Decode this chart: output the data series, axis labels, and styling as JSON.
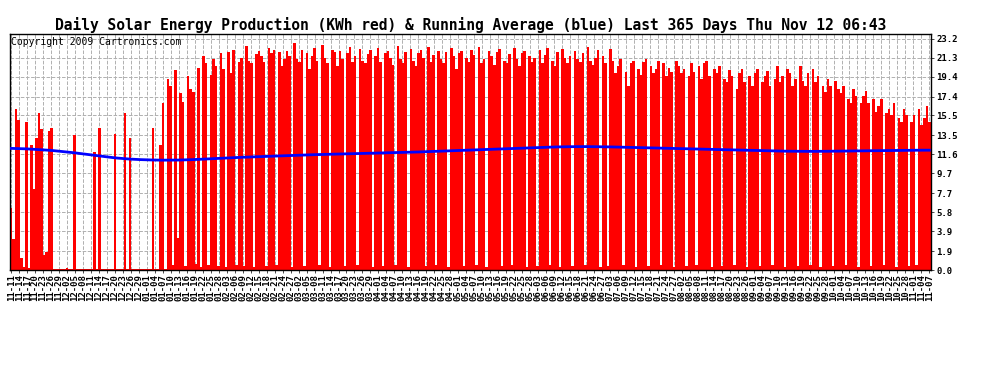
{
  "title": "Daily Solar Energy Production (KWh red) & Running Average (blue) Last 365 Days Thu Nov 12 06:43",
  "copyright_text": "Copyright 2009 Cartronics.com",
  "bar_color": "#ff0000",
  "avg_line_color": "#0000ff",
  "background_color": "#ffffff",
  "grid_color": "#b0b0b0",
  "yticks": [
    0.0,
    1.9,
    3.9,
    5.8,
    7.7,
    9.7,
    11.6,
    13.5,
    15.5,
    17.4,
    19.4,
    21.3,
    23.2
  ],
  "ylim": [
    0.0,
    23.7
  ],
  "xtick_labels": [
    "11-11",
    "11-14",
    "11-17",
    "11-20",
    "11-23",
    "11-26",
    "11-29",
    "12-02",
    "12-05",
    "12-08",
    "12-11",
    "12-14",
    "12-17",
    "12-20",
    "12-23",
    "12-26",
    "12-29",
    "01-01",
    "01-04",
    "01-07",
    "01-10",
    "01-13",
    "01-16",
    "01-19",
    "01-22",
    "01-25",
    "01-28",
    "02-03",
    "02-06",
    "02-09",
    "02-12",
    "02-15",
    "02-18",
    "02-21",
    "02-24",
    "02-27",
    "03-02",
    "03-05",
    "03-08",
    "03-11",
    "03-14",
    "03-17",
    "03-20",
    "03-23",
    "03-26",
    "03-29",
    "04-01",
    "04-04",
    "04-07",
    "04-10",
    "04-13",
    "04-16",
    "04-19",
    "04-22",
    "04-25",
    "04-28",
    "05-01",
    "05-04",
    "05-07",
    "05-10",
    "05-13",
    "05-16",
    "05-19",
    "05-22",
    "05-25",
    "05-28",
    "06-03",
    "06-06",
    "06-09",
    "06-12",
    "06-15",
    "06-18",
    "06-21",
    "06-24",
    "06-27",
    "07-03",
    "07-06",
    "07-09",
    "07-12",
    "07-15",
    "07-18",
    "07-21",
    "07-24",
    "07-27",
    "08-02",
    "08-05",
    "08-08",
    "08-11",
    "08-14",
    "08-17",
    "08-20",
    "08-23",
    "08-26",
    "09-01",
    "09-04",
    "09-07",
    "09-10",
    "09-13",
    "09-16",
    "09-19",
    "09-22",
    "09-25",
    "09-28",
    "10-01",
    "10-04",
    "10-07",
    "10-10",
    "10-13",
    "10-16",
    "10-19",
    "10-22",
    "10-25",
    "10-28",
    "11-01",
    "11-04",
    "11-07"
  ],
  "title_fontsize": 10.5,
  "tick_fontsize": 6.5,
  "copyright_fontsize": 7,
  "avg_line": [
    12.2,
    12.18,
    12.15,
    12.1,
    12.05,
    12.0,
    11.92,
    11.84,
    11.75,
    11.65,
    11.55,
    11.45,
    11.35,
    11.25,
    11.18,
    11.12,
    11.08,
    11.05,
    11.03,
    11.02,
    11.02,
    11.03,
    11.05,
    11.08,
    11.12,
    11.16,
    11.2,
    11.24,
    11.28,
    11.31,
    11.34,
    11.37,
    11.4,
    11.43,
    11.46,
    11.49,
    11.52,
    11.55,
    11.57,
    11.59,
    11.61,
    11.63,
    11.65,
    11.67,
    11.69,
    11.71,
    11.73,
    11.75,
    11.77,
    11.79,
    11.81,
    11.84,
    11.87,
    11.9,
    11.93,
    11.96,
    11.99,
    12.02,
    12.05,
    12.08,
    12.11,
    12.14,
    12.17,
    12.2,
    12.23,
    12.26,
    12.29,
    12.32,
    12.34,
    12.36,
    12.37,
    12.38,
    12.38,
    12.37,
    12.36,
    12.35,
    12.33,
    12.31,
    12.29,
    12.27,
    12.25,
    12.23,
    12.21,
    12.19,
    12.17,
    12.15,
    12.13,
    12.11,
    12.09,
    12.07,
    12.05,
    12.03,
    12.01,
    11.99,
    11.97,
    11.95,
    11.93,
    11.92,
    11.91,
    11.9,
    11.9,
    11.9,
    11.91,
    11.92,
    11.93,
    11.94,
    11.95,
    11.96,
    11.97,
    11.98,
    11.99,
    12.0,
    12.01,
    12.02,
    12.02,
    12.02
  ],
  "bar_values": [
    6.2,
    3.1,
    16.2,
    15.0,
    1.2,
    0.3,
    14.8,
    0.2,
    12.5,
    8.1,
    13.2,
    15.8,
    14.1,
    1.5,
    1.8,
    13.9,
    14.2,
    0.1,
    0.1,
    0.1,
    0.15,
    0.12,
    0.18,
    0.1,
    0.08,
    13.5,
    0.09,
    0.1,
    0.11,
    0.1,
    0.1,
    0.13,
    0.1,
    11.8,
    0.1,
    14.2,
    0.12,
    0.1,
    0.09,
    0.1,
    0.1,
    13.6,
    0.08,
    0.09,
    0.1,
    15.8,
    0.1,
    13.2,
    0.1,
    0.09,
    0.08,
    0.1,
    0.12,
    0.1,
    0.09,
    0.1,
    14.2,
    0.1,
    0.09,
    12.5,
    16.8,
    0.1,
    19.2,
    18.5,
    0.5,
    20.1,
    3.2,
    17.8,
    16.9,
    0.4,
    19.5,
    18.2,
    17.9,
    0.6,
    20.3,
    0.3,
    21.5,
    20.8,
    0.5,
    19.6,
    21.2,
    20.5,
    0.4,
    21.8,
    20.2,
    0.3,
    21.9,
    19.8,
    22.1,
    0.5,
    20.9,
    21.3,
    0.4,
    22.5,
    21.0,
    20.8,
    0.3,
    21.7,
    22.0,
    21.5,
    20.9,
    0.4,
    22.3,
    21.8,
    22.1,
    0.5,
    21.9,
    20.5,
    21.2,
    22.0,
    21.5,
    0.3,
    22.8,
    21.2,
    20.9,
    22.1,
    0.4,
    21.8,
    20.2,
    21.5,
    22.3,
    21.0,
    0.5,
    22.6,
    21.3,
    20.8,
    0.3,
    22.1,
    21.9,
    20.5,
    22.0,
    21.2,
    0.4,
    21.8,
    22.4,
    20.9,
    21.5,
    0.5,
    22.2,
    21.0,
    20.8,
    21.7,
    22.1,
    0.3,
    21.5,
    22.3,
    20.9,
    0.4,
    21.8,
    22.0,
    21.3,
    20.6,
    0.5,
    22.5,
    21.2,
    20.8,
    21.9,
    0.3,
    22.2,
    21.0,
    20.5,
    21.8,
    22.1,
    21.3,
    0.4,
    22.4,
    20.9,
    21.6,
    0.5,
    22.0,
    21.2,
    20.8,
    21.9,
    0.3,
    22.3,
    21.5,
    20.2,
    21.8,
    22.0,
    0.4,
    21.3,
    20.9,
    22.1,
    21.6,
    0.5,
    22.4,
    20.8,
    21.2,
    0.3,
    22.0,
    21.5,
    20.6,
    21.9,
    22.2,
    0.4,
    21.0,
    20.8,
    21.7,
    0.5,
    22.3,
    21.2,
    20.5,
    21.8,
    22.0,
    0.3,
    21.5,
    20.9,
    21.3,
    0.4,
    22.1,
    20.8,
    21.6,
    22.3,
    0.5,
    21.0,
    20.5,
    21.9,
    0.3,
    22.2,
    21.3,
    20.8,
    21.5,
    0.4,
    22.0,
    21.2,
    20.9,
    21.8,
    0.5,
    22.4,
    21.0,
    20.6,
    21.3,
    22.1,
    0.3,
    21.5,
    20.8,
    0.4,
    22.2,
    21.0,
    19.8,
    20.5,
    21.2,
    0.5,
    19.9,
    18.5,
    20.8,
    21.0,
    0.3,
    20.2,
    19.6,
    20.9,
    21.2,
    0.4,
    20.5,
    19.8,
    20.2,
    21.0,
    0.5,
    20.8,
    19.5,
    20.3,
    19.9,
    0.3,
    21.0,
    20.5,
    19.8,
    20.2,
    0.4,
    19.5,
    20.8,
    19.9,
    0.5,
    20.5,
    19.2,
    20.8,
    21.0,
    19.5,
    0.3,
    20.2,
    19.8,
    20.5,
    0.4,
    19.2,
    18.9,
    20.1,
    19.5,
    0.5,
    18.2,
    19.8,
    20.2,
    18.9,
    0.3,
    19.5,
    18.5,
    19.8,
    20.2,
    0.4,
    18.9,
    19.5,
    20.0,
    18.5,
    0.5,
    19.2,
    20.5,
    18.9,
    19.5,
    0.3,
    20.2,
    19.8,
    18.5,
    19.2,
    0.4,
    20.5,
    19.0,
    18.5,
    19.8,
    0.5,
    20.2,
    18.9,
    19.5,
    0.3,
    18.5,
    17.9,
    19.2,
    18.5,
    0.4,
    19.0,
    18.2,
    17.8,
    18.5,
    0.5,
    17.2,
    16.8,
    18.2,
    17.5,
    0.3,
    16.8,
    17.5,
    18.0,
    16.8,
    0.4,
    17.2,
    15.9,
    16.5,
    17.2,
    0.5,
    15.8,
    16.2,
    15.5,
    16.8,
    0.3,
    15.2,
    14.8,
    16.2,
    15.5,
    0.4,
    14.8,
    15.5,
    0.5,
    16.2,
    14.5,
    15.2,
    16.5,
    14.8
  ]
}
